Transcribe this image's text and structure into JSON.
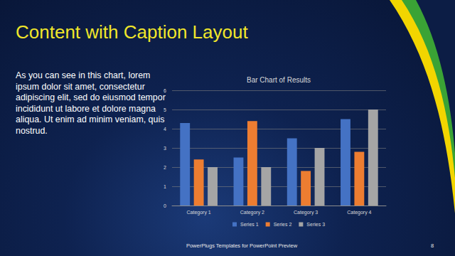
{
  "slide": {
    "title": "Content with Caption Layout",
    "caption": "As you can see in this chart, lorem ipsum dolor sit amet, consectetur adipiscing elit, sed do eiusmod tempor incididunt ut labore et dolore magna aliqua. Ut enim ad minim veniam, quis nostrud.",
    "footer": "PowerPlugs Templates for PowerPoint Preview",
    "page": 8
  },
  "chart_data": {
    "type": "bar",
    "title": "Bar Chart of Results",
    "categories": [
      "Category 1",
      "Category 2",
      "Category 3",
      "Category 4"
    ],
    "series": [
      {
        "name": "Series 1",
        "color": "#4472c4",
        "values": [
          4.3,
          2.5,
          3.5,
          4.5
        ]
      },
      {
        "name": "Series 2",
        "color": "#ed7d31",
        "values": [
          2.4,
          4.4,
          1.8,
          2.8
        ]
      },
      {
        "name": "Series 3",
        "color": "#a5a5a5",
        "values": [
          2,
          2,
          3,
          5
        ]
      }
    ],
    "ylim": [
      0,
      6
    ],
    "yticks": [
      0,
      1,
      2,
      3,
      4,
      5,
      6
    ],
    "grid": true,
    "legend": "bottom"
  }
}
